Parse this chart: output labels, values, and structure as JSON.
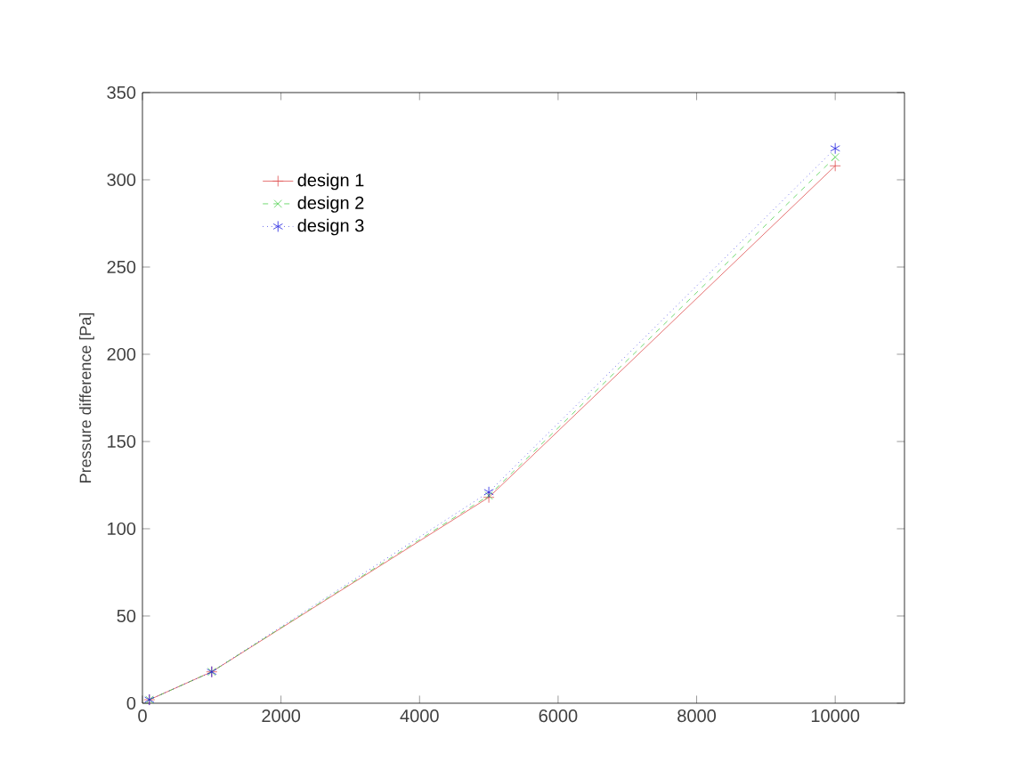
{
  "chart_data": {
    "type": "line",
    "ylabel": "Pressure difference [Pa]",
    "x": [
      100,
      1000,
      5000,
      10000
    ],
    "series": [
      {
        "name": "design 1",
        "color": "#e05050",
        "values": [
          2,
          18,
          118,
          308
        ],
        "marker": "cross",
        "line_style": "solid"
      },
      {
        "name": "design 2",
        "color": "#50d050",
        "values": [
          2,
          18,
          119,
          313
        ],
        "marker": "cross",
        "line_style": "dashed"
      },
      {
        "name": "design 3",
        "color": "#2020e0",
        "values": [
          2,
          18,
          121,
          318
        ],
        "marker": "cross",
        "line_style": "dotted"
      }
    ],
    "xlim": [
      0,
      11000
    ],
    "xticks": [
      0,
      2000,
      4000,
      6000,
      8000,
      10000
    ],
    "ylim": [
      0,
      350
    ],
    "yticks": [
      0,
      50,
      100,
      150,
      200,
      250,
      300,
      350
    ],
    "legend": "top left",
    "grid": false
  }
}
